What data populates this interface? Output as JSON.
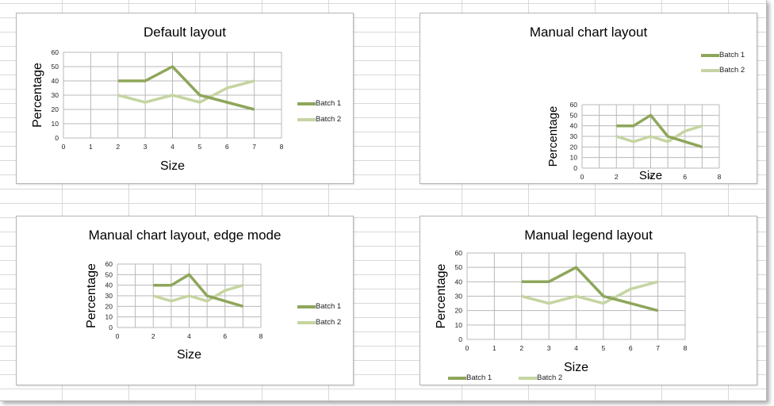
{
  "chart_data": [
    {
      "type": "line",
      "title": "Default layout",
      "xlabel": "Size",
      "ylabel": "Percentage",
      "xlim": [
        0,
        8
      ],
      "ylim": [
        0,
        60
      ],
      "xticks": [
        "0",
        "1",
        "2",
        "3",
        "4",
        "5",
        "6",
        "7",
        "8"
      ],
      "yticks": [
        "0",
        "10",
        "20",
        "30",
        "40",
        "50",
        "60"
      ],
      "grid": true,
      "legend_position": "right",
      "x": [
        2,
        3,
        4,
        5,
        6,
        7
      ],
      "series": [
        {
          "name": "Batch 1",
          "values": [
            40,
            40,
            50,
            30,
            25,
            20
          ],
          "color": "#8ea65a"
        },
        {
          "name": "Batch 2",
          "values": [
            30,
            25,
            30,
            25,
            35,
            40
          ],
          "color": "#c5d5a2"
        }
      ]
    },
    {
      "type": "line",
      "title": "Manual chart layout",
      "xlabel": "Size",
      "ylabel": "Percentage",
      "xlim": [
        0,
        8
      ],
      "ylim": [
        0,
        60
      ],
      "xticks": [
        "0",
        "2",
        "4",
        "6",
        "8"
      ],
      "yticks": [
        "0",
        "10",
        "20",
        "30",
        "40",
        "50",
        "60"
      ],
      "grid": true,
      "legend_position": "top-right",
      "x": [
        2,
        3,
        4,
        5,
        6,
        7
      ],
      "series": [
        {
          "name": "Batch 1",
          "values": [
            40,
            40,
            50,
            30,
            25,
            20
          ],
          "color": "#8ea65a"
        },
        {
          "name": "Batch 2",
          "values": [
            30,
            25,
            30,
            25,
            35,
            40
          ],
          "color": "#c5d5a2"
        }
      ]
    },
    {
      "type": "line",
      "title": "Manual chart layout, edge mode",
      "xlabel": "Size",
      "ylabel": "Percentage",
      "xlim": [
        0,
        8
      ],
      "ylim": [
        0,
        60
      ],
      "xticks": [
        "0",
        "2",
        "4",
        "6",
        "8"
      ],
      "yticks": [
        "0",
        "10",
        "20",
        "30",
        "40",
        "50",
        "60"
      ],
      "grid": true,
      "legend_position": "right",
      "x": [
        2,
        3,
        4,
        5,
        6,
        7
      ],
      "series": [
        {
          "name": "Batch 1",
          "values": [
            40,
            40,
            50,
            30,
            25,
            20
          ],
          "color": "#8ea65a"
        },
        {
          "name": "Batch 2",
          "values": [
            30,
            25,
            30,
            25,
            35,
            40
          ],
          "color": "#c5d5a2"
        }
      ]
    },
    {
      "type": "line",
      "title": "Manual legend layout",
      "xlabel": "Size",
      "ylabel": "Percentage",
      "xlim": [
        0,
        8
      ],
      "ylim": [
        0,
        60
      ],
      "xticks": [
        "0",
        "1",
        "2",
        "3",
        "4",
        "5",
        "6",
        "7",
        "8"
      ],
      "yticks": [
        "0",
        "10",
        "20",
        "30",
        "40",
        "50",
        "60"
      ],
      "grid": true,
      "legend_position": "bottom-left",
      "x": [
        2,
        3,
        4,
        5,
        6,
        7
      ],
      "series": [
        {
          "name": "Batch 1",
          "values": [
            40,
            40,
            50,
            30,
            25,
            20
          ],
          "color": "#8ea65a"
        },
        {
          "name": "Batch 2",
          "values": [
            30,
            25,
            30,
            25,
            35,
            40
          ],
          "color": "#c5d5a2"
        }
      ]
    }
  ]
}
